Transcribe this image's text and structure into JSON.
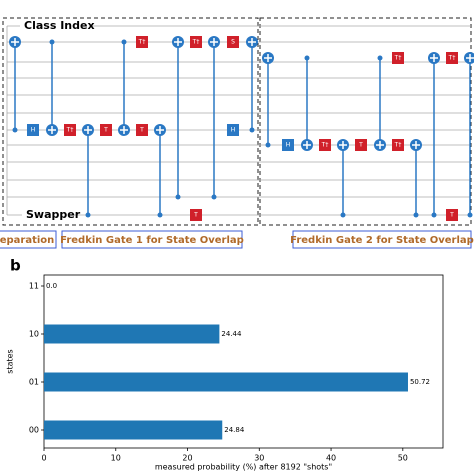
{
  "diagram": {
    "wire_labels": [
      "Class Index",
      "Swapper"
    ],
    "sections": [
      "eparation",
      "Fredkin Gate 1 for State Overlap",
      "Fredkin Gate 2 for State Overlap"
    ],
    "gates": [
      "H",
      "T†",
      "T",
      "T†",
      "T",
      "T†",
      "T",
      "S",
      "H",
      "H",
      "T†",
      "T",
      "T†",
      "T†",
      "T†",
      "T"
    ]
  },
  "panel_label": "b",
  "chart_data": {
    "type": "barh",
    "categories": [
      "00",
      "01",
      "10",
      "11"
    ],
    "values": [
      24.84,
      50.72,
      24.44,
      0.0
    ],
    "value_labels": [
      "24.84",
      "50.72",
      "24.44",
      "0.0"
    ],
    "color": "#1f77b4",
    "xlim": [
      0,
      55.6
    ],
    "xticks": [
      0,
      10,
      20,
      30,
      40,
      50
    ],
    "xlabel": "measured probability (%) after 8192 \"shots\"",
    "ylabel": "states"
  }
}
